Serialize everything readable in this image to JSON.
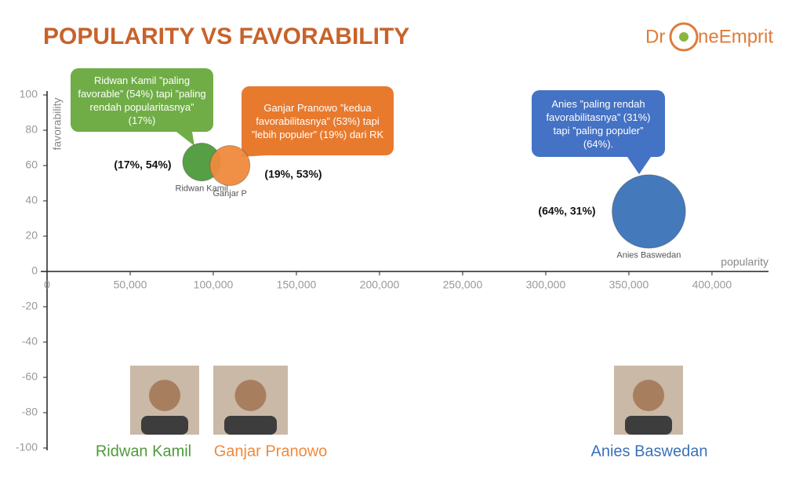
{
  "chart_data": {
    "type": "bubble",
    "title": "POPULARITY VS FAVORABILITY",
    "logo": [
      "Dr",
      "neEmprit"
    ],
    "x_label": "popularity",
    "y_label": "favorability",
    "xlim": [
      0,
      434000
    ],
    "ylim": [
      -100,
      100
    ],
    "xticks": [
      0,
      {
        "value": 50000,
        "label": "50,000"
      },
      {
        "value": 100000,
        "label": "100,000"
      },
      {
        "value": 150000,
        "label": "150,000"
      },
      {
        "value": 200000,
        "label": "200,000"
      },
      {
        "value": 250000,
        "label": "250,000"
      },
      {
        "value": 300000,
        "label": "300,000"
      },
      {
        "value": 350000,
        "label": "350,000"
      },
      {
        "value": 400000,
        "label": "400,000"
      }
    ],
    "yticks": [
      -100,
      -80,
      -60,
      -40,
      -20,
      0,
      20,
      40,
      60,
      80,
      100
    ],
    "series": [
      {
        "name": "Ridwan Kamil",
        "color": "#4e9a3b",
        "x": [
          93000
        ],
        "values": [
          62
        ],
        "sizes": [
          17
        ],
        "point_labels": [
          "Ridwan Kamil"
        ]
      },
      {
        "name": "Ganjar Pranowo",
        "color": "#ef8a3c",
        "x": [
          110000
        ],
        "values": [
          60
        ],
        "sizes": [
          19
        ],
        "point_labels": [
          "Ganjar P"
        ]
      },
      {
        "name": "Anies Baswedan",
        "color": "#3a72b8",
        "x": [
          362000
        ],
        "values": [
          34
        ],
        "sizes": [
          64
        ],
        "point_labels": [
          "Anies Baswedan"
        ]
      }
    ],
    "annotations": [
      "(17%, 54%)",
      "(19%, 53%)",
      "(64%, 31%)"
    ],
    "callouts": [
      "Ridwan Kamil ”paling favorable” (54%) tapi ”paling rendah popularitasnya” (17%)",
      "Ganjar Pranowo ”kedua favorabilitasnya” (53%) tapi ”lebih populer” (19%) dari RK",
      "Anies ”paling rendah favorabilitasnya” (31%) tapi ”paling populer” (64%)."
    ]
  }
}
